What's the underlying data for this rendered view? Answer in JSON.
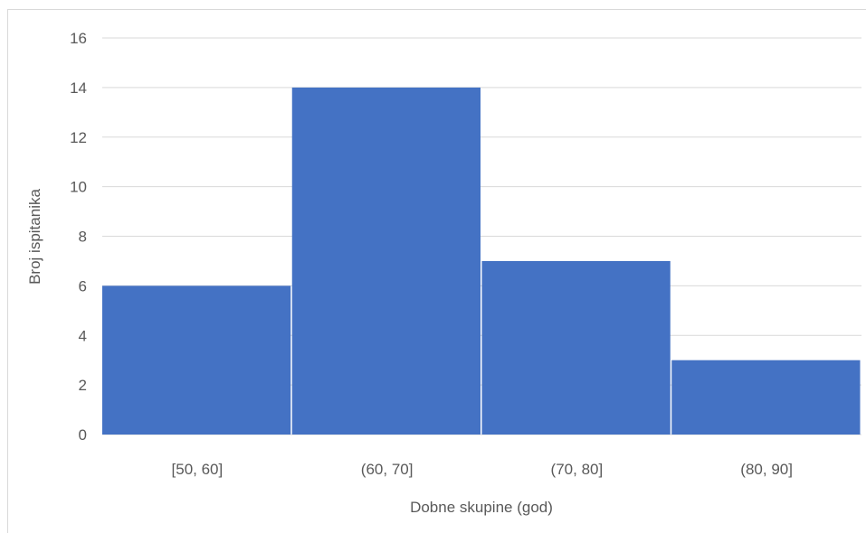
{
  "chart_data": {
    "type": "bar",
    "title": "",
    "xlabel": "Dobne skupine (god)",
    "ylabel": "Broj ispitanika",
    "categories": [
      "[50, 60]",
      "(60, 70]",
      "(70, 80]",
      "(80, 90]"
    ],
    "values": [
      6,
      14,
      7,
      3
    ],
    "ylim": [
      0,
      16
    ],
    "yticks": [
      0,
      2,
      4,
      6,
      8,
      10,
      12,
      14,
      16
    ],
    "grid": true,
    "legend": "none",
    "bar_color": "#4472c4",
    "grid_color": "#d9d9d9"
  }
}
